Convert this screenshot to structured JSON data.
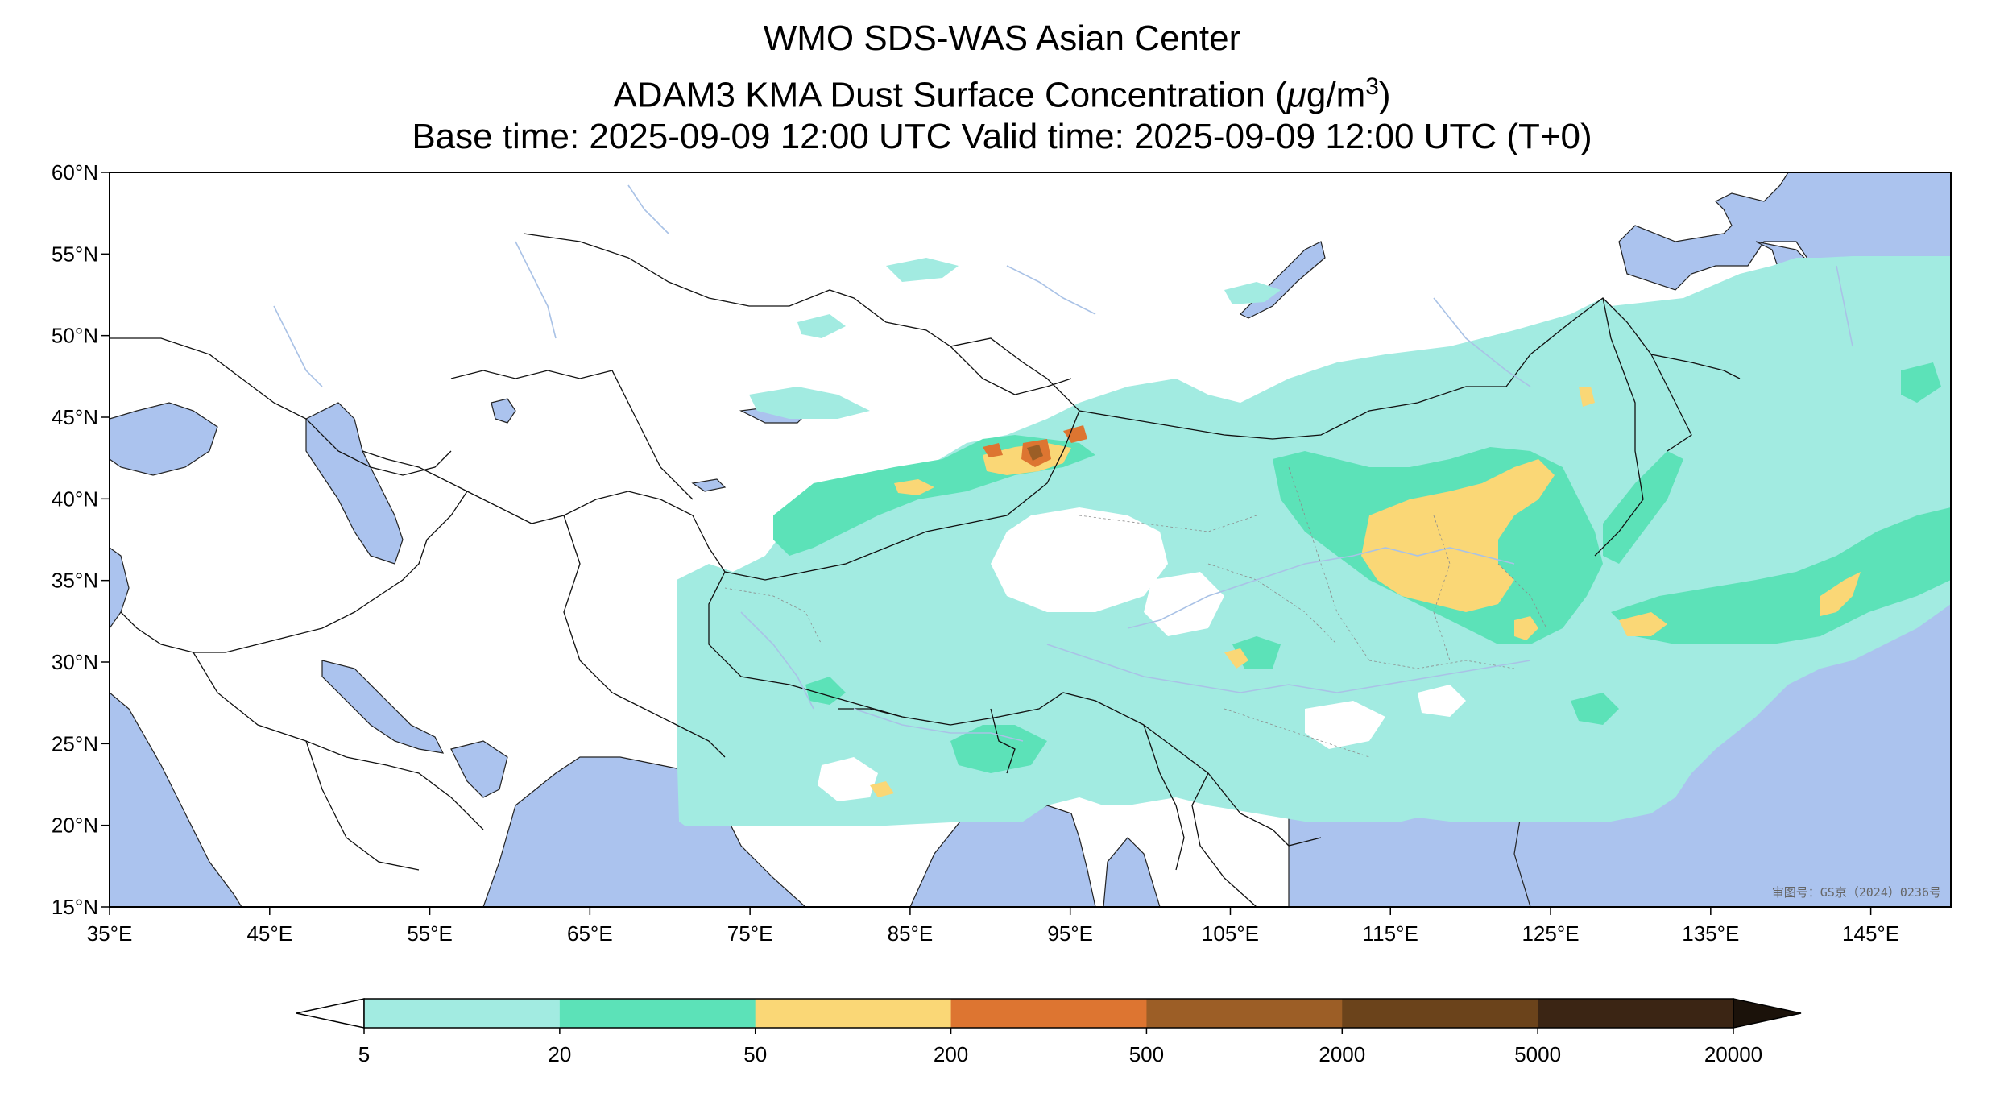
{
  "title": {
    "line1": "WMO SDS-WAS Asian Center",
    "line2_prefix": "ADAM3 KMA Dust Surface Concentration (",
    "line2_mu": "μ",
    "line2_unit": "g/m",
    "line2_exp": "3",
    "line2_suffix": ")",
    "line3": "Base time: 2025-09-09 12:00 UTC Valid time: 2025-09-09 12:00 UTC (T+0)"
  },
  "map": {
    "lon_range": [
      35,
      150
    ],
    "lat_range": [
      15,
      60
    ],
    "lat_ticks": [
      {
        "value": 60,
        "label": "60°N"
      },
      {
        "value": 55,
        "label": "55°N"
      },
      {
        "value": 50,
        "label": "50°N"
      },
      {
        "value": 45,
        "label": "45°N"
      },
      {
        "value": 40,
        "label": "40°N"
      },
      {
        "value": 35,
        "label": "35°N"
      },
      {
        "value": 30,
        "label": "30°N"
      },
      {
        "value": 25,
        "label": "25°N"
      },
      {
        "value": 20,
        "label": "20°N"
      },
      {
        "value": 15,
        "label": "15°N"
      }
    ],
    "lon_ticks": [
      {
        "value": 35,
        "label": "35°E"
      },
      {
        "value": 45,
        "label": "45°E"
      },
      {
        "value": 55,
        "label": "55°E"
      },
      {
        "value": 65,
        "label": "65°E"
      },
      {
        "value": 75,
        "label": "75°E"
      },
      {
        "value": 85,
        "label": "85°E"
      },
      {
        "value": 95,
        "label": "95°E"
      },
      {
        "value": 105,
        "label": "105°E"
      },
      {
        "value": 115,
        "label": "115°E"
      },
      {
        "value": 125,
        "label": "125°E"
      },
      {
        "value": 135,
        "label": "135°E"
      },
      {
        "value": 145,
        "label": "145°E"
      }
    ],
    "stamp_text": "审图号：GS京（2024）0236号",
    "colors": {
      "water": "#abc3ee",
      "land": "#ffffff",
      "border": "#111111",
      "river": "#a9c2e6"
    }
  },
  "colorbar": {
    "ticks": [
      "5",
      "20",
      "50",
      "200",
      "500",
      "2000",
      "5000",
      "20000"
    ],
    "bins": [
      {
        "from": "5",
        "to": "20",
        "color": "#a2ebe1"
      },
      {
        "from": "20",
        "to": "50",
        "color": "#5ce2b8"
      },
      {
        "from": "50",
        "to": "200",
        "color": "#fad776"
      },
      {
        "from": "200",
        "to": "500",
        "color": "#dd7531"
      },
      {
        "from": "500",
        "to": "2000",
        "color": "#9c5e26"
      },
      {
        "from": "2000",
        "to": "5000",
        "color": "#6b431b"
      },
      {
        "from": "5000",
        "to": "20000",
        "color": "#3b2514"
      }
    ],
    "under_color": "#ffffff",
    "over_color": "#1b120a"
  }
}
